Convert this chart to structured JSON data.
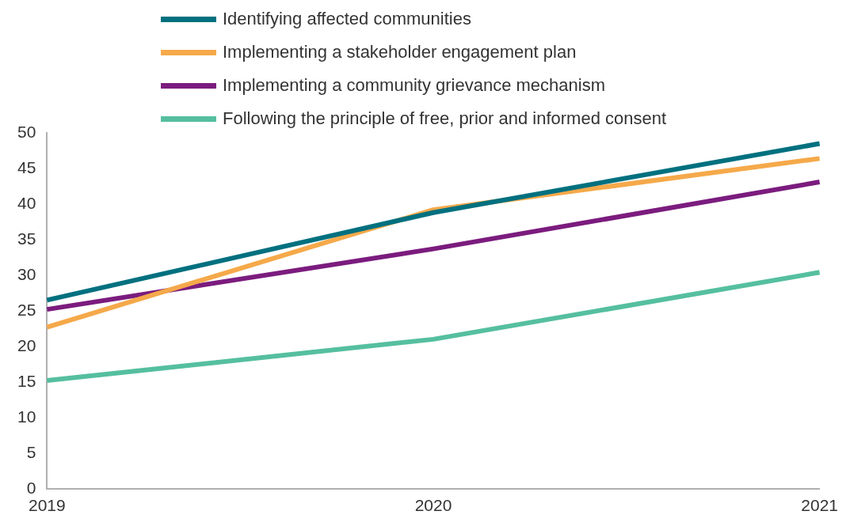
{
  "chart_data": {
    "type": "line",
    "categories": [
      "2019",
      "2020",
      "2021"
    ],
    "series": [
      {
        "name": "Identifying affected communities",
        "color": "#00707f",
        "values": [
          26.5,
          38.8,
          48.5
        ]
      },
      {
        "name": "Implementing a stakeholder engagement plan",
        "color": "#f5a94a",
        "values": [
          22.7,
          39.2,
          46.4
        ]
      },
      {
        "name": "Implementing a community grievance mechanism",
        "color": "#7b1c7e",
        "values": [
          25.2,
          33.7,
          43.1
        ]
      },
      {
        "name": "Following the principle of free, prior and informed consent",
        "color": "#55bf9f",
        "values": [
          15.2,
          21.0,
          30.4
        ]
      }
    ],
    "ylim": [
      0,
      50
    ],
    "yticks": [
      0,
      5,
      10,
      15,
      20,
      25,
      30,
      35,
      40,
      45,
      50
    ],
    "grid": false,
    "legend": "top",
    "marker": "none",
    "line_style": "solid"
  }
}
